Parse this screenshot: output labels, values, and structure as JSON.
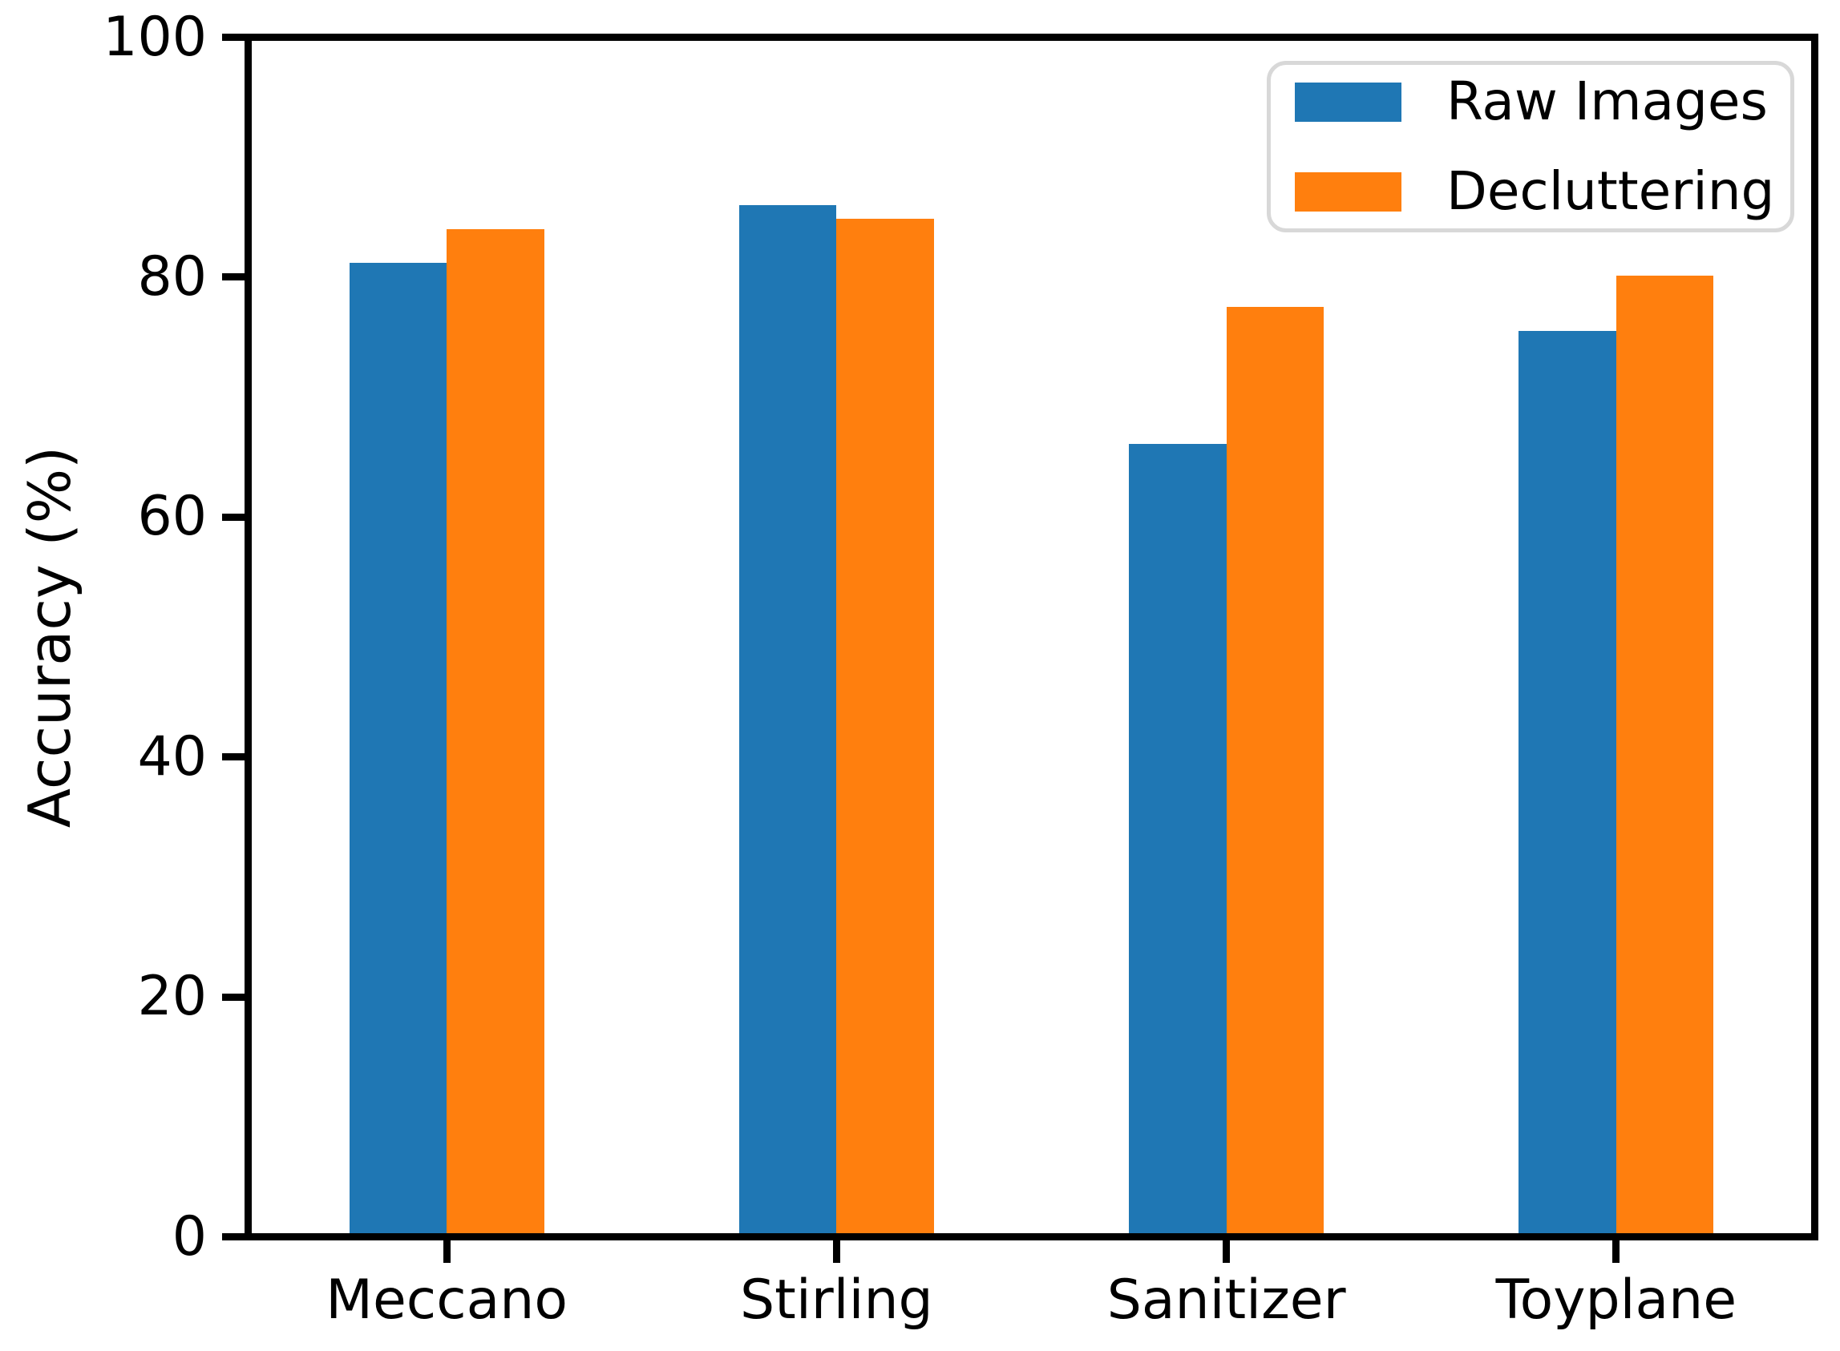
{
  "chart_data": {
    "type": "bar",
    "title": "",
    "xlabel": "",
    "ylabel": "Accuracy (%)",
    "categories": [
      "Meccano",
      "Stirling",
      "Sanitizer",
      "Toyplane"
    ],
    "series": [
      {
        "name": "Raw Images",
        "color": "#1f77b4",
        "values": [
          81.4,
          86.2,
          66.2,
          75.7
        ]
      },
      {
        "name": "Decluttering",
        "color": "#ff7f0e",
        "values": [
          84.2,
          85.1,
          77.7,
          80.3
        ]
      }
    ],
    "ylim": [
      0,
      100
    ],
    "yticks": [
      0,
      20,
      40,
      60,
      80,
      100
    ],
    "ytick_labels": [
      "0",
      "20",
      "40",
      "60",
      "80",
      "100"
    ],
    "grid": false,
    "legend_position": "upper right",
    "bar_width_fraction": 0.25
  },
  "legend": {
    "items": [
      {
        "label": "Raw Images",
        "color": "#1f77b4"
      },
      {
        "label": "Decluttering",
        "color": "#ff7f0e"
      }
    ]
  },
  "colors": {
    "background": "#ffffff",
    "spine": "#000000",
    "tick": "#000000",
    "legend_border": "#d8d8d8",
    "series_blue": "#1f77b4",
    "series_orange": "#ff7f0e"
  }
}
